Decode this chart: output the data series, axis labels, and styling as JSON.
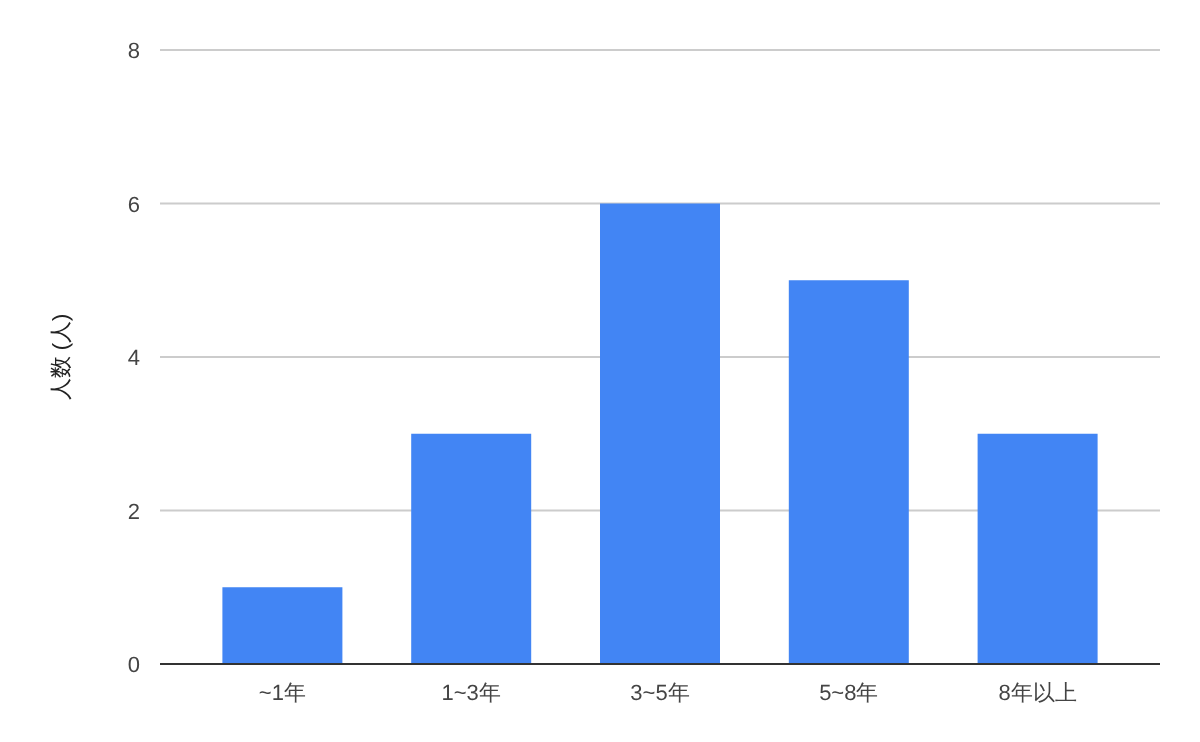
{
  "chart_data": {
    "type": "bar",
    "ylabel": "人数 (人)",
    "categories": [
      "~1年",
      "1~3年",
      "3~5年",
      "5~8年",
      "8年以上"
    ],
    "values": [
      1,
      3,
      6,
      5,
      3
    ],
    "color": "#4285f4",
    "ylim": [
      0,
      8
    ],
    "yticks": [
      0,
      2,
      4,
      6,
      8
    ],
    "grid": "y"
  }
}
